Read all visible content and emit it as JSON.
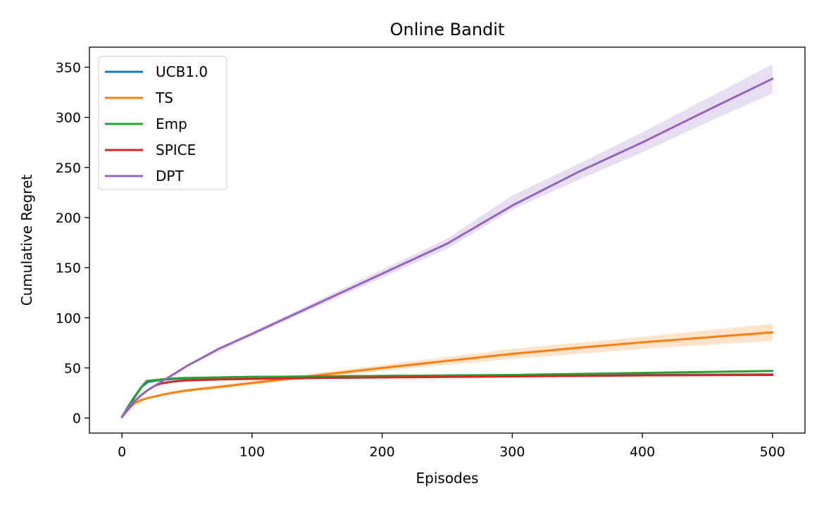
{
  "chart_data": {
    "type": "line",
    "title": "Online Bandit",
    "xlabel": "Episodes",
    "ylabel": "Cumulative Regret",
    "xlim": [
      -25,
      525
    ],
    "ylim": [
      -15,
      370
    ],
    "xticks": [
      0,
      100,
      200,
      300,
      400,
      500
    ],
    "yticks": [
      0,
      50,
      100,
      150,
      200,
      250,
      300,
      350
    ],
    "grid": false,
    "legend_position": "top-left",
    "series": [
      {
        "name": "UCB1.0",
        "color": "#1f77b4",
        "x": [
          0,
          5,
          10,
          15,
          20,
          30,
          40,
          50,
          75,
          100,
          150,
          200,
          300,
          400,
          500
        ],
        "y": [
          1,
          12,
          22,
          31,
          36,
          38,
          39,
          39.5,
          40.5,
          41,
          41.5,
          42,
          42.5,
          43,
          43.5
        ]
      },
      {
        "name": "TS",
        "color": "#ff7f0e",
        "band": [
          [
            0,
            1,
            1
          ],
          [
            10,
            14,
            16
          ],
          [
            20,
            19,
            21
          ],
          [
            40,
            24,
            27
          ],
          [
            60,
            28,
            31
          ],
          [
            100,
            33,
            37
          ],
          [
            150,
            40,
            45
          ],
          [
            200,
            47,
            53
          ],
          [
            300,
            59,
            69
          ],
          [
            400,
            69,
            81
          ],
          [
            500,
            77,
            94
          ]
        ],
        "x": [
          0,
          5,
          10,
          15,
          20,
          30,
          40,
          50,
          75,
          100,
          150,
          200,
          250,
          300,
          350,
          400,
          450,
          500
        ],
        "y": [
          1,
          10,
          15,
          18,
          20,
          23,
          25.5,
          27.5,
          31,
          35,
          42.5,
          50,
          57,
          64,
          70,
          75.5,
          80.5,
          85.5
        ]
      },
      {
        "name": "Emp",
        "color": "#2ca02c",
        "x": [
          0,
          5,
          10,
          15,
          19,
          30,
          40,
          50,
          75,
          100,
          150,
          200,
          300,
          400,
          500
        ],
        "y": [
          1,
          11,
          21,
          31,
          37,
          38.5,
          39.5,
          40,
          40.5,
          41,
          41.5,
          42,
          43,
          45,
          47
        ]
      },
      {
        "name": "SPICE",
        "color": "#d62728",
        "x": [
          0,
          5,
          10,
          15,
          20,
          25,
          30,
          40,
          50,
          75,
          100,
          150,
          200,
          300,
          400,
          500
        ],
        "y": [
          1,
          9,
          17,
          23,
          28,
          32,
          34.5,
          36.5,
          37.5,
          38.5,
          39,
          40,
          40.5,
          41.5,
          42.5,
          43
        ]
      },
      {
        "name": "DPT",
        "color": "#9467bd",
        "band": [
          [
            0,
            1,
            1
          ],
          [
            50,
            51,
            53
          ],
          [
            100,
            82,
            86
          ],
          [
            150,
            111,
            117
          ],
          [
            200,
            140,
            148
          ],
          [
            250,
            169,
            179
          ],
          [
            300,
            208,
            222
          ],
          [
            350,
            237,
            253
          ],
          [
            400,
            265,
            285
          ],
          [
            450,
            295,
            319
          ],
          [
            500,
            324,
            353
          ]
        ],
        "x": [
          0,
          5,
          10,
          15,
          20,
          25,
          30,
          40,
          50,
          60,
          75,
          100,
          150,
          200,
          250,
          300,
          350,
          400,
          450,
          500
        ],
        "y": [
          1,
          10,
          17,
          23,
          28,
          32,
          36,
          44,
          52,
          59,
          69.5,
          84,
          114,
          144,
          174,
          212,
          245,
          275,
          307,
          338.5
        ]
      }
    ]
  }
}
